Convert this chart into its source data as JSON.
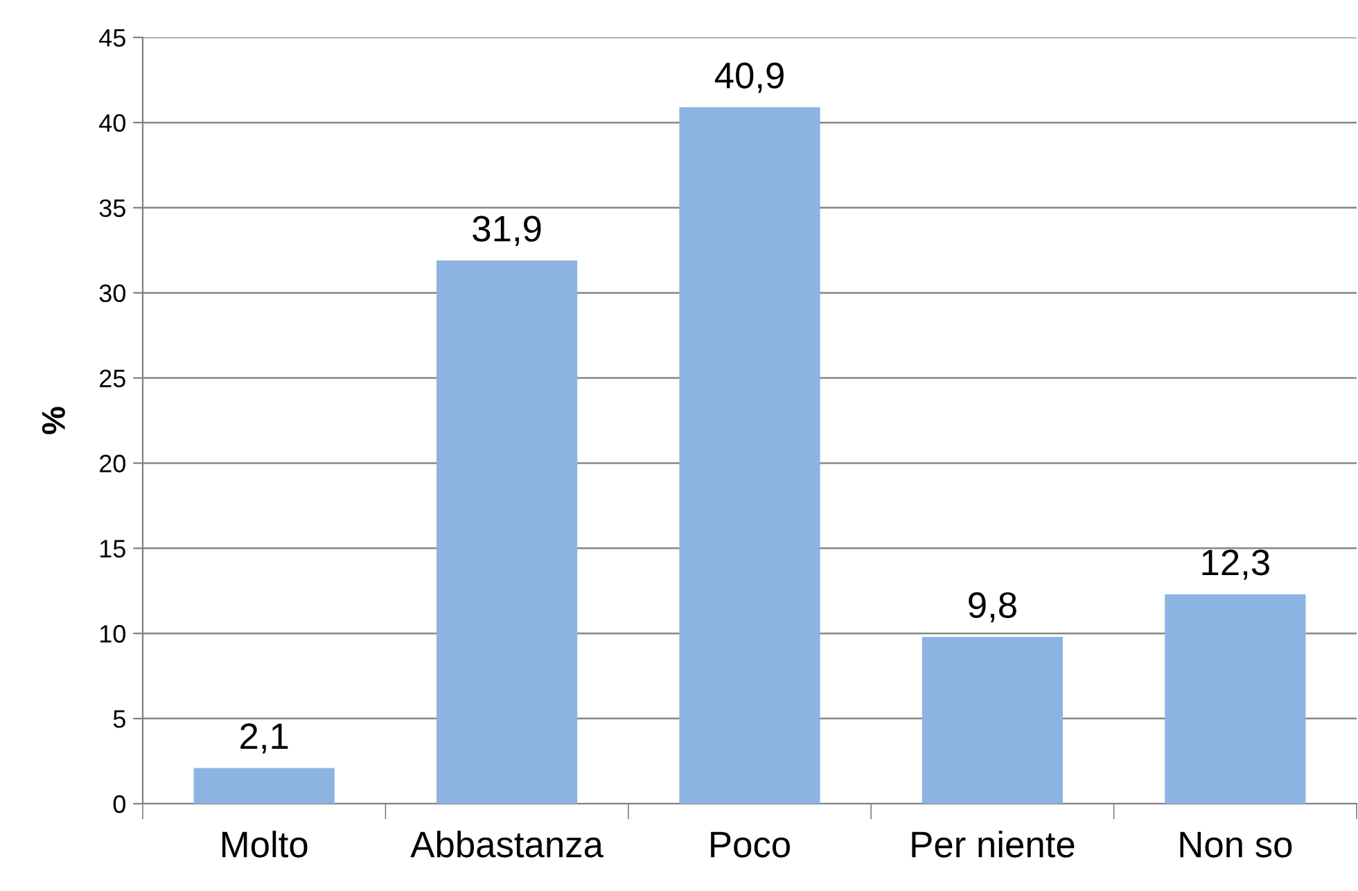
{
  "chart_data": {
    "type": "bar",
    "ylabel": "%",
    "categories": [
      "Molto",
      "Abbastanza",
      "Poco",
      "Per niente",
      "Non so"
    ],
    "values": [
      2.1,
      31.9,
      40.9,
      9.8,
      12.3
    ],
    "value_labels": [
      "2,1",
      "31,9",
      "40,9",
      "9,8",
      "12,3"
    ],
    "color": "#8db3e2",
    "ylim": [
      0,
      45
    ],
    "yticks": [
      0,
      5,
      10,
      15,
      20,
      25,
      30,
      35,
      40,
      45
    ],
    "grid": "y"
  }
}
